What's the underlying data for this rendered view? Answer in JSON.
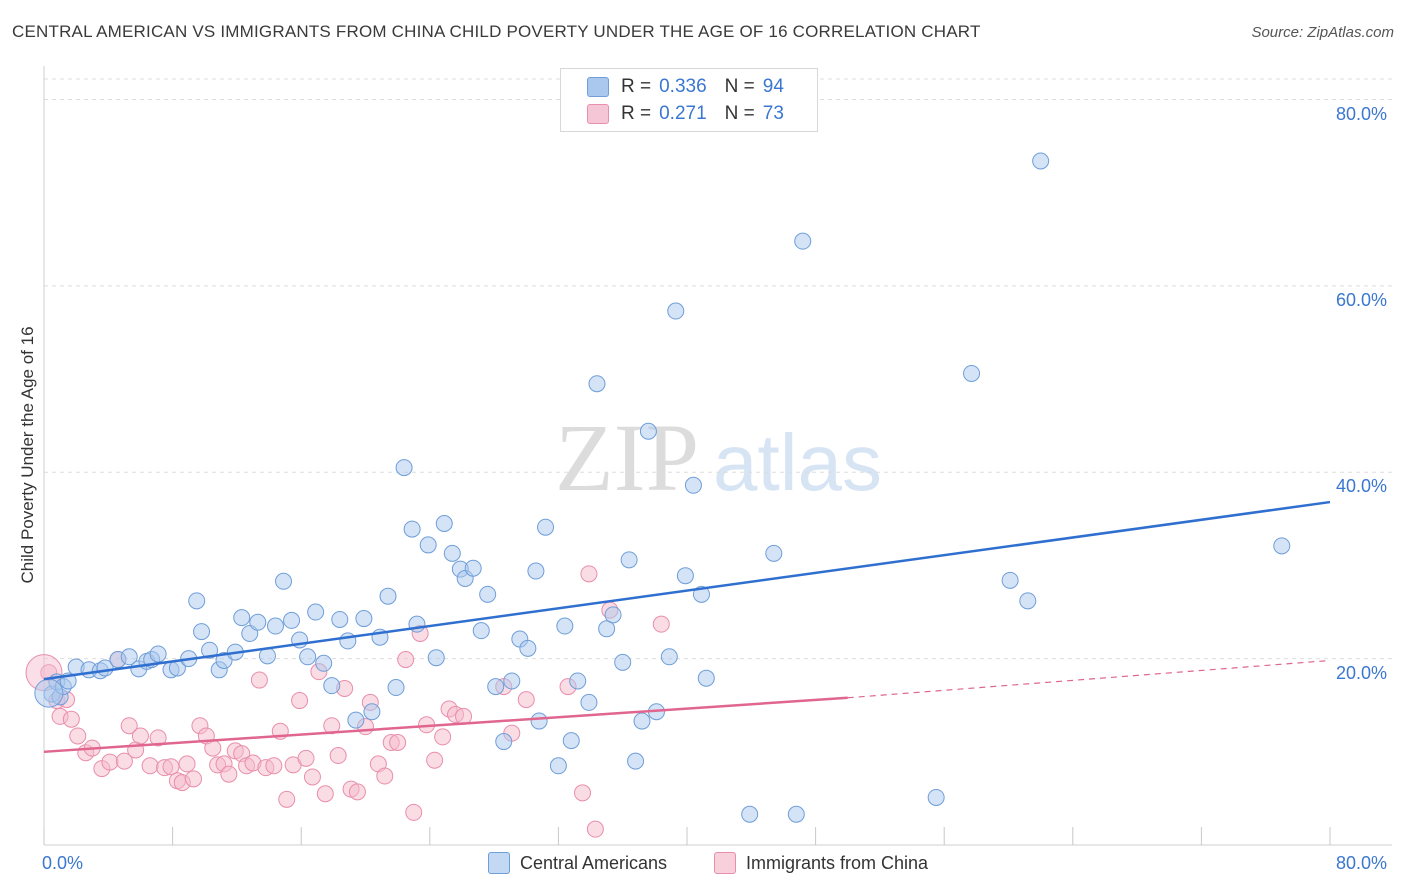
{
  "header": {
    "title": "CENTRAL AMERICAN VS IMMIGRANTS FROM CHINA CHILD POVERTY UNDER THE AGE OF 16 CORRELATION CHART",
    "source": "Source: ZipAtlas.com"
  },
  "colors": {
    "blue_fill": "#aac8ee",
    "blue_stroke": "#6f9ed8",
    "blue_line": "#2f6fcf",
    "pink_fill": "#f5b9cc",
    "pink_stroke": "#e98eab",
    "pink_line": "#e0658f",
    "grid": "#dddddd",
    "tick_text": "#3a77d0"
  },
  "legend_top": {
    "rows": [
      {
        "r_label": "R =",
        "r_value": "0.336",
        "n_label": "N =",
        "n_value": "94"
      },
      {
        "r_label": "R =",
        "r_value": "0.271",
        "n_label": "N =",
        "n_value": "73"
      }
    ]
  },
  "legend_bottom": {
    "items": [
      {
        "label": "Central Americans"
      },
      {
        "label": "Immigrants from China"
      }
    ]
  },
  "watermark": {
    "part1": "ZIP",
    "part2": "atlas"
  },
  "chart_data": {
    "type": "scatter",
    "title": "CENTRAL AMERICAN VS IMMIGRANTS FROM CHINA CHILD POVERTY UNDER THE AGE OF 16 CORRELATION CHART",
    "xlabel": "",
    "ylabel": "Child Poverty Under the Age of 16",
    "xlim": [
      0,
      80
    ],
    "ylim": [
      0,
      80
    ],
    "x_tick_labels": [
      "0.0%",
      "80.0%"
    ],
    "y_tick_labels": [
      "20.0%",
      "40.0%",
      "60.0%",
      "80.0%"
    ],
    "y_ticks": [
      20,
      40,
      60,
      80
    ],
    "grid": true,
    "legend_position": "top-center",
    "series": [
      {
        "name": "Central Americans",
        "color": "#aac8ee",
        "trend": {
          "x": [
            0,
            80
          ],
          "y": [
            17.8,
            36.8
          ]
        },
        "points": [
          [
            0.5,
            16.2
          ],
          [
            0.8,
            17.5
          ],
          [
            1.0,
            15.9
          ],
          [
            1.2,
            17.0
          ],
          [
            1.5,
            17.6
          ],
          [
            2.0,
            19.1
          ],
          [
            2.8,
            18.8
          ],
          [
            3.5,
            18.7
          ],
          [
            3.8,
            19.0
          ],
          [
            4.6,
            19.9
          ],
          [
            5.3,
            20.2
          ],
          [
            5.9,
            18.9
          ],
          [
            6.4,
            19.7
          ],
          [
            6.7,
            19.9
          ],
          [
            7.1,
            20.5
          ],
          [
            7.9,
            18.8
          ],
          [
            8.3,
            19.0
          ],
          [
            9.0,
            20.0
          ],
          [
            9.5,
            26.2
          ],
          [
            9.8,
            22.9
          ],
          [
            10.3,
            20.9
          ],
          [
            10.9,
            18.8
          ],
          [
            11.2,
            19.8
          ],
          [
            11.9,
            20.7
          ],
          [
            12.3,
            24.4
          ],
          [
            12.8,
            22.7
          ],
          [
            13.3,
            23.9
          ],
          [
            13.9,
            20.3
          ],
          [
            14.4,
            23.5
          ],
          [
            14.9,
            28.3
          ],
          [
            15.4,
            24.1
          ],
          [
            15.9,
            22.0
          ],
          [
            16.4,
            20.2
          ],
          [
            16.9,
            25.0
          ],
          [
            17.4,
            19.5
          ],
          [
            17.9,
            17.1
          ],
          [
            18.4,
            24.2
          ],
          [
            18.9,
            21.9
          ],
          [
            19.4,
            13.4
          ],
          [
            19.9,
            24.3
          ],
          [
            20.4,
            14.3
          ],
          [
            20.9,
            22.3
          ],
          [
            21.4,
            26.7
          ],
          [
            21.9,
            16.9
          ],
          [
            22.4,
            40.5
          ],
          [
            22.9,
            33.9
          ],
          [
            23.2,
            23.7
          ],
          [
            23.9,
            32.2
          ],
          [
            24.4,
            20.1
          ],
          [
            24.9,
            34.5
          ],
          [
            25.4,
            31.3
          ],
          [
            25.9,
            29.6
          ],
          [
            26.2,
            28.6
          ],
          [
            26.7,
            29.7
          ],
          [
            27.2,
            23.0
          ],
          [
            27.6,
            26.9
          ],
          [
            28.1,
            17.0
          ],
          [
            28.6,
            11.1
          ],
          [
            29.1,
            17.6
          ],
          [
            29.6,
            22.1
          ],
          [
            30.1,
            21.1
          ],
          [
            30.6,
            29.4
          ],
          [
            30.8,
            13.3
          ],
          [
            31.2,
            34.1
          ],
          [
            32.0,
            8.5
          ],
          [
            32.4,
            23.5
          ],
          [
            32.8,
            11.2
          ],
          [
            33.2,
            17.6
          ],
          [
            33.9,
            15.3
          ],
          [
            34.4,
            49.5
          ],
          [
            35.0,
            23.2
          ],
          [
            35.4,
            24.7
          ],
          [
            36.0,
            19.6
          ],
          [
            36.4,
            30.6
          ],
          [
            36.8,
            9.0
          ],
          [
            37.2,
            13.3
          ],
          [
            37.6,
            44.4
          ],
          [
            38.1,
            14.3
          ],
          [
            38.9,
            20.2
          ],
          [
            39.3,
            57.3
          ],
          [
            39.9,
            28.9
          ],
          [
            40.4,
            38.6
          ],
          [
            40.9,
            26.9
          ],
          [
            41.2,
            17.9
          ],
          [
            43.9,
            3.3
          ],
          [
            45.4,
            31.3
          ],
          [
            46.8,
            3.3
          ],
          [
            47.2,
            64.8
          ],
          [
            55.5,
            5.1
          ],
          [
            57.7,
            50.6
          ],
          [
            60.1,
            28.4
          ],
          [
            61.2,
            26.2
          ],
          [
            62.0,
            73.4
          ],
          [
            77.0,
            32.1
          ]
        ]
      },
      {
        "name": "Immigrants from China",
        "color": "#f5b9cc",
        "trend": {
          "x": [
            0,
            50
          ],
          "y": [
            10.0,
            15.8
          ]
        },
        "trend_dashed": {
          "x": [
            50,
            80
          ],
          "y": [
            15.8,
            19.8
          ]
        },
        "points": [
          [
            0.3,
            18.5
          ],
          [
            0.8,
            15.5
          ],
          [
            1.0,
            13.8
          ],
          [
            1.4,
            15.6
          ],
          [
            1.7,
            13.5
          ],
          [
            2.1,
            11.7
          ],
          [
            2.6,
            9.9
          ],
          [
            3.0,
            10.4
          ],
          [
            3.6,
            8.2
          ],
          [
            4.1,
            8.9
          ],
          [
            4.6,
            19.9
          ],
          [
            5.0,
            9.0
          ],
          [
            5.3,
            12.8
          ],
          [
            5.7,
            10.2
          ],
          [
            6.0,
            11.7
          ],
          [
            6.6,
            8.5
          ],
          [
            7.1,
            11.5
          ],
          [
            7.5,
            8.3
          ],
          [
            7.9,
            8.4
          ],
          [
            8.3,
            6.9
          ],
          [
            8.6,
            6.7
          ],
          [
            8.9,
            8.7
          ],
          [
            9.3,
            7.1
          ],
          [
            9.7,
            12.8
          ],
          [
            10.1,
            11.7
          ],
          [
            10.5,
            10.4
          ],
          [
            10.8,
            8.6
          ],
          [
            11.2,
            8.7
          ],
          [
            11.5,
            7.6
          ],
          [
            11.9,
            10.1
          ],
          [
            12.3,
            9.8
          ],
          [
            12.6,
            8.5
          ],
          [
            13.0,
            8.8
          ],
          [
            13.4,
            17.7
          ],
          [
            13.8,
            8.3
          ],
          [
            14.3,
            8.5
          ],
          [
            14.7,
            12.2
          ],
          [
            15.1,
            4.9
          ],
          [
            15.5,
            8.6
          ],
          [
            15.9,
            15.5
          ],
          [
            16.3,
            9.3
          ],
          [
            16.7,
            7.3
          ],
          [
            17.1,
            18.6
          ],
          [
            17.5,
            5.5
          ],
          [
            17.9,
            12.8
          ],
          [
            18.3,
            9.6
          ],
          [
            18.7,
            16.8
          ],
          [
            19.1,
            6.0
          ],
          [
            19.5,
            5.7
          ],
          [
            20.0,
            12.7
          ],
          [
            20.3,
            15.3
          ],
          [
            20.8,
            8.7
          ],
          [
            21.2,
            7.4
          ],
          [
            21.6,
            11.0
          ],
          [
            22.0,
            11.0
          ],
          [
            22.5,
            19.9
          ],
          [
            23.0,
            3.5
          ],
          [
            23.4,
            22.7
          ],
          [
            23.8,
            12.9
          ],
          [
            24.3,
            9.1
          ],
          [
            24.8,
            11.6
          ],
          [
            25.2,
            14.6
          ],
          [
            25.6,
            14.0
          ],
          [
            26.1,
            13.8
          ],
          [
            28.6,
            17.0
          ],
          [
            29.1,
            12.0
          ],
          [
            30.0,
            15.6
          ],
          [
            32.6,
            17.0
          ],
          [
            33.5,
            5.6
          ],
          [
            33.9,
            29.1
          ],
          [
            34.3,
            1.7
          ],
          [
            35.2,
            25.2
          ],
          [
            38.4,
            23.7
          ]
        ]
      }
    ]
  }
}
